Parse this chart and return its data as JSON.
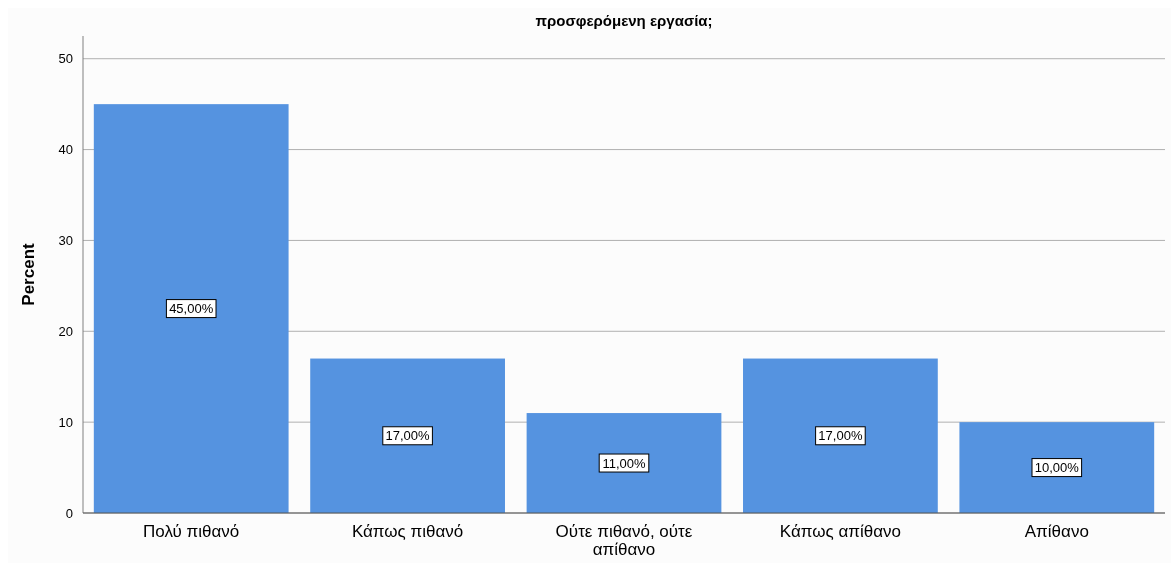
{
  "chart_data": {
    "type": "bar",
    "title": "προσφερόμενη εργασία;",
    "ylabel": "Percent",
    "categories": [
      "Πολύ πιθανό",
      "Κάπως πιθανό",
      "Ούτε πιθανό, ούτε απίθανο",
      "Κάπως απίθανο",
      "Απίθανο"
    ],
    "values": [
      45,
      17,
      11,
      17,
      10
    ],
    "color": "#5593e0",
    "value_labels": [
      "45,00%",
      "17,00%",
      "11,00%",
      "17,00%",
      "10,00%"
    ],
    "ylim": [
      0,
      52.5
    ],
    "yticks": [
      0,
      10,
      20,
      30,
      40,
      50
    ],
    "grid": "y"
  }
}
